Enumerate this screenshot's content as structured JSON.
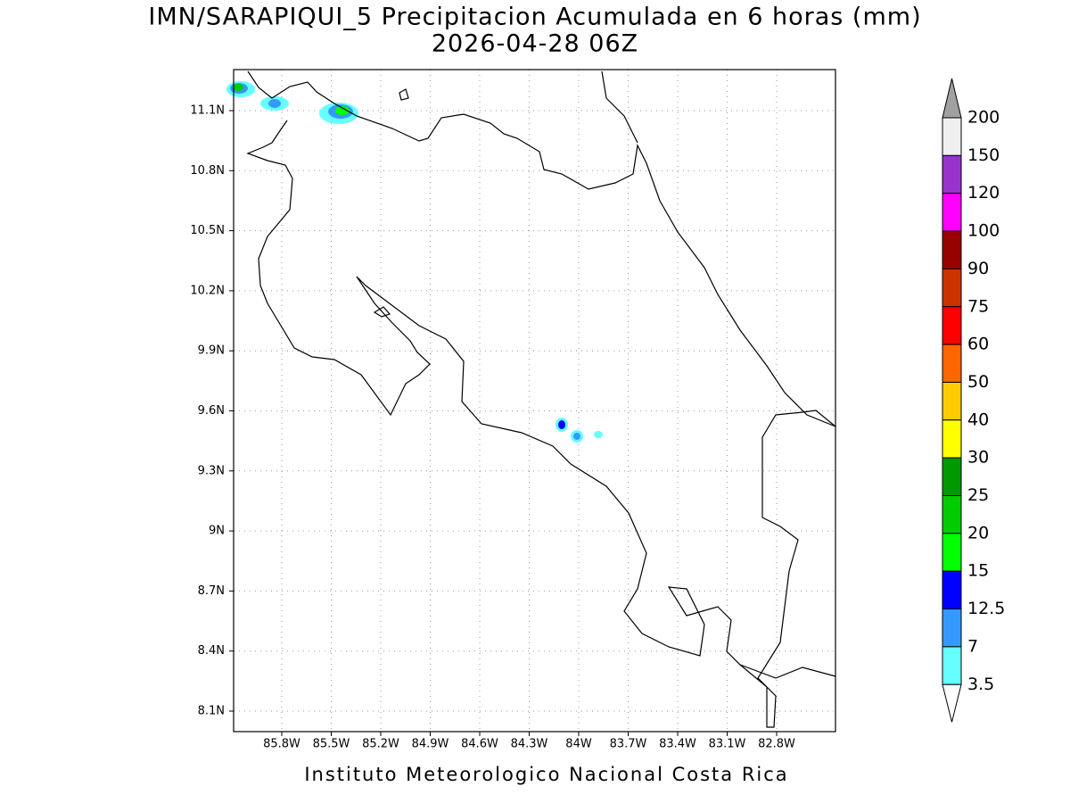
{
  "title": "IMN/SARAPIQUI_5 Precipitacion Acumulada en 6 horas (mm)",
  "subtitle": "2026-04-28 06Z",
  "map": {
    "lon_labels": [
      "85.8W",
      "85.5W",
      "85.2W",
      "84.9W",
      "84.6W",
      "84.3W",
      "84W",
      "83.7W",
      "83.4W",
      "83.1W",
      "82.8W"
    ],
    "lat_labels": [
      "11.1N",
      "10.8N",
      "10.5N",
      "10.2N",
      "9.9N",
      "9.6N",
      "9.3N",
      "9N",
      "8.7N",
      "8.4N",
      "8.1N"
    ]
  },
  "colorbar": {
    "labels": [
      "200",
      "150",
      "120",
      "100",
      "90",
      "75",
      "60",
      "50",
      "40",
      "30",
      "25",
      "20",
      "15",
      "12.5",
      "7",
      "3.5"
    ],
    "colors": [
      "#f0f0f0",
      "#9933cc",
      "#ff00ff",
      "#990000",
      "#cc3300",
      "#ff0000",
      "#ff6600",
      "#ffcc00",
      "#ffff00",
      "#009900",
      "#00cc00",
      "#00ff00",
      "#0000ff",
      "#3399ff",
      "#66ffff"
    ],
    "over_color": "#a0a0a0",
    "under_color": "#ffffff"
  },
  "footer": "Instituto Meteorologico Nacional Costa Rica"
}
